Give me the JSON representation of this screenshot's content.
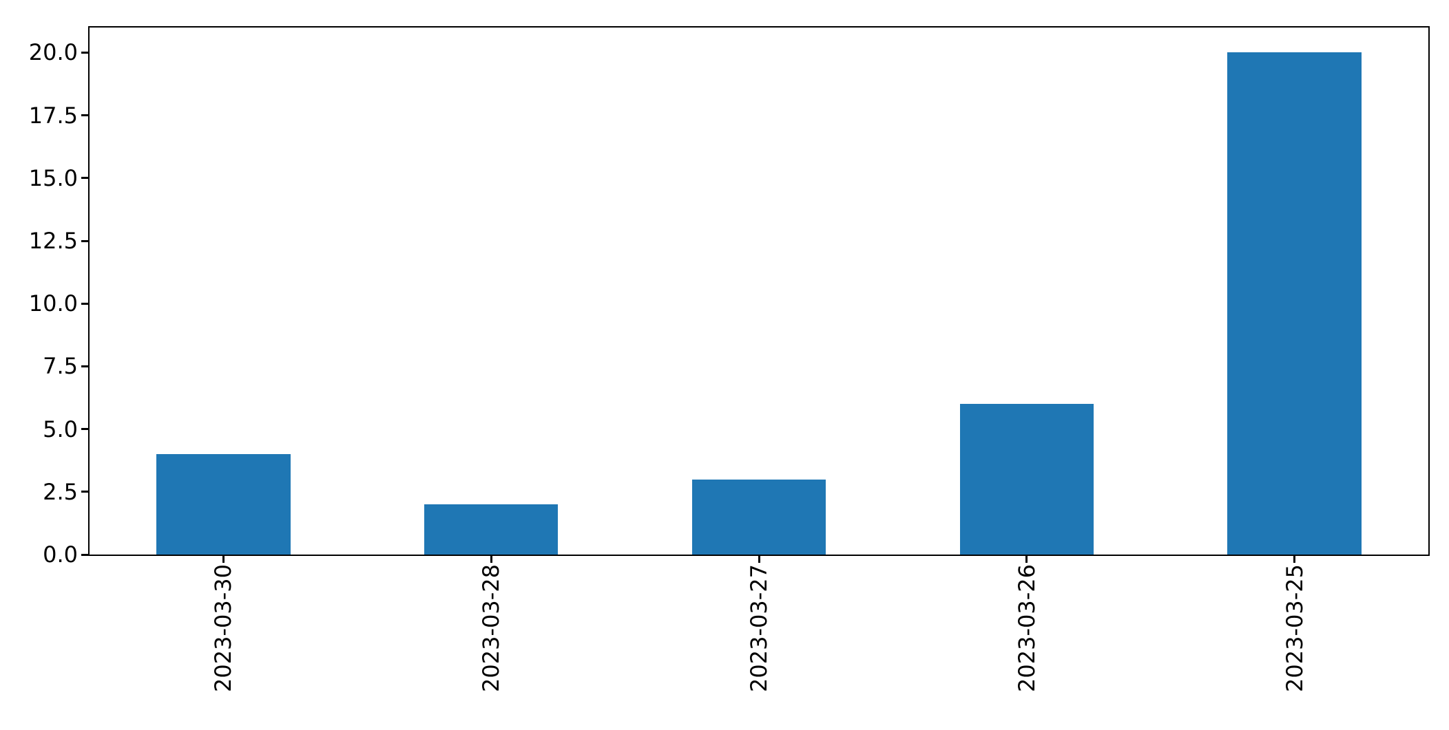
{
  "figure": {
    "background_color": "#ffffff",
    "spine_color": "#000000",
    "tick_color": "#000000",
    "tick_label_color": "#000000"
  },
  "chart_data": {
    "type": "bar",
    "title": "",
    "xlabel": "",
    "ylabel": "",
    "categories": [
      "2023-03-30",
      "2023-03-28",
      "2023-03-27",
      "2023-03-26",
      "2023-03-25"
    ],
    "values": [
      4,
      2,
      3,
      6,
      20
    ],
    "bar_color": "#1f77b4",
    "bar_width_fraction": 0.5,
    "x_tick_label_rotation_deg": 90,
    "ylim": [
      0,
      21
    ],
    "yticks": [
      0.0,
      2.5,
      5.0,
      7.5,
      10.0,
      12.5,
      15.0,
      17.5,
      20.0
    ],
    "ytick_labels": [
      "0.0",
      "2.5",
      "5.0",
      "7.5",
      "10.0",
      "12.5",
      "15.0",
      "17.5",
      "20.0"
    ],
    "grid": false,
    "legend": false
  }
}
